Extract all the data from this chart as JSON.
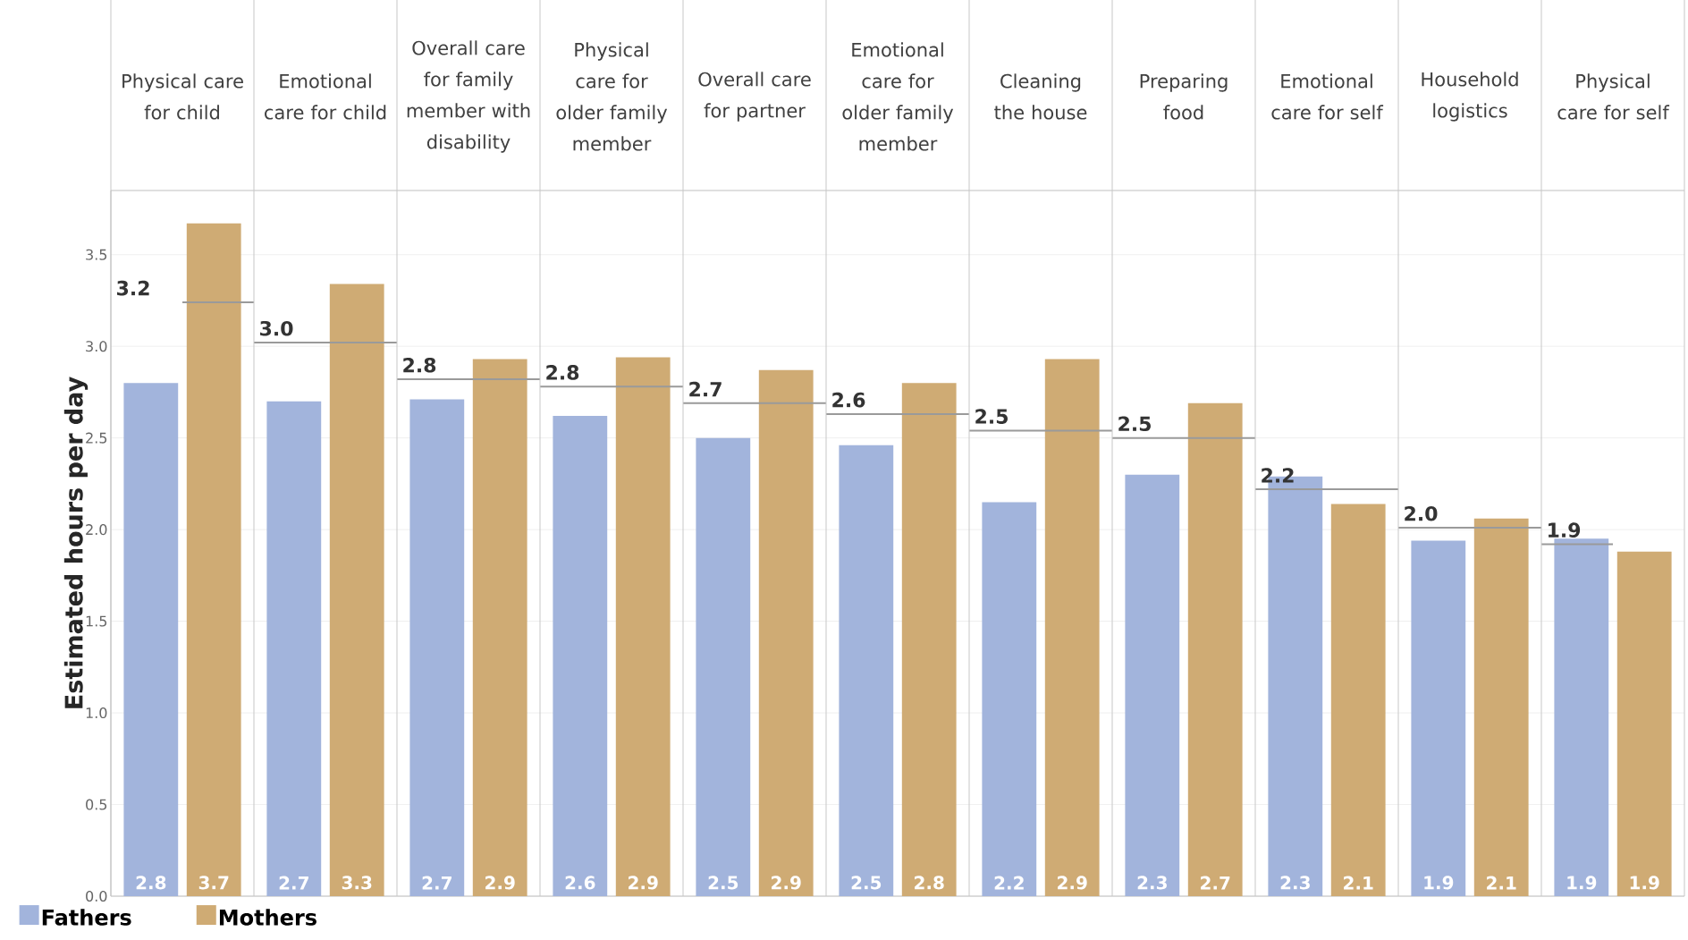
{
  "chart_data": {
    "type": "bar",
    "ylabel": "Estimated hours per day",
    "categories": [
      "Physical care for child",
      "Emotional care for child",
      "Overall care for family member with disability",
      "Physical care for older family member",
      "Overall care for partner",
      "Emotional care for older family member",
      "Cleaning the house",
      "Preparing food",
      "Emotional care for self",
      "Household logistics",
      "Physical care for self"
    ],
    "series": [
      {
        "name": "Fathers",
        "color": "#a2b4dc",
        "values": [
          2.8,
          2.7,
          2.71,
          2.62,
          2.5,
          2.46,
          2.15,
          2.3,
          2.29,
          1.94,
          1.95
        ],
        "value_labels": [
          "2.8",
          "2.7",
          "2.7",
          "2.6",
          "2.5",
          "2.5",
          "2.2",
          "2.3",
          "2.3",
          "1.9",
          "1.9"
        ]
      },
      {
        "name": "Mothers",
        "color": "#cfab74",
        "values": [
          3.67,
          3.34,
          2.93,
          2.94,
          2.87,
          2.8,
          2.93,
          2.69,
          2.14,
          2.06,
          1.88
        ],
        "value_labels": [
          "3.7",
          "3.3",
          "2.9",
          "2.9",
          "2.9",
          "2.8",
          "2.9",
          "2.7",
          "2.1",
          "2.1",
          "1.9"
        ]
      },
      {
        "type": "step",
        "color": "#9a9a9a",
        "values": [
          3.24,
          3.02,
          2.82,
          2.78,
          2.69,
          2.63,
          2.54,
          2.5,
          2.22,
          2.01,
          1.92
        ],
        "value_labels": [
          "3.2",
          "3.0",
          "2.8",
          "2.8",
          "2.7",
          "2.6",
          "2.5",
          "2.5",
          "2.2",
          "2.0",
          "1.9"
        ]
      }
    ],
    "ylim": [
      0,
      3.85
    ],
    "yticks": [
      {
        "value": 0,
        "label": "0.0"
      },
      {
        "value": 0.5,
        "label": "0.5"
      },
      {
        "value": 1,
        "label": "1.0"
      },
      {
        "value": 1.5,
        "label": "1.5"
      },
      {
        "value": 2,
        "label": "2.0"
      },
      {
        "value": 2.5,
        "label": "2.5"
      },
      {
        "value": 3,
        "label": "3.0"
      },
      {
        "value": 3.5,
        "label": "3.5"
      }
    ],
    "grid": true,
    "legend": "bottom left"
  }
}
